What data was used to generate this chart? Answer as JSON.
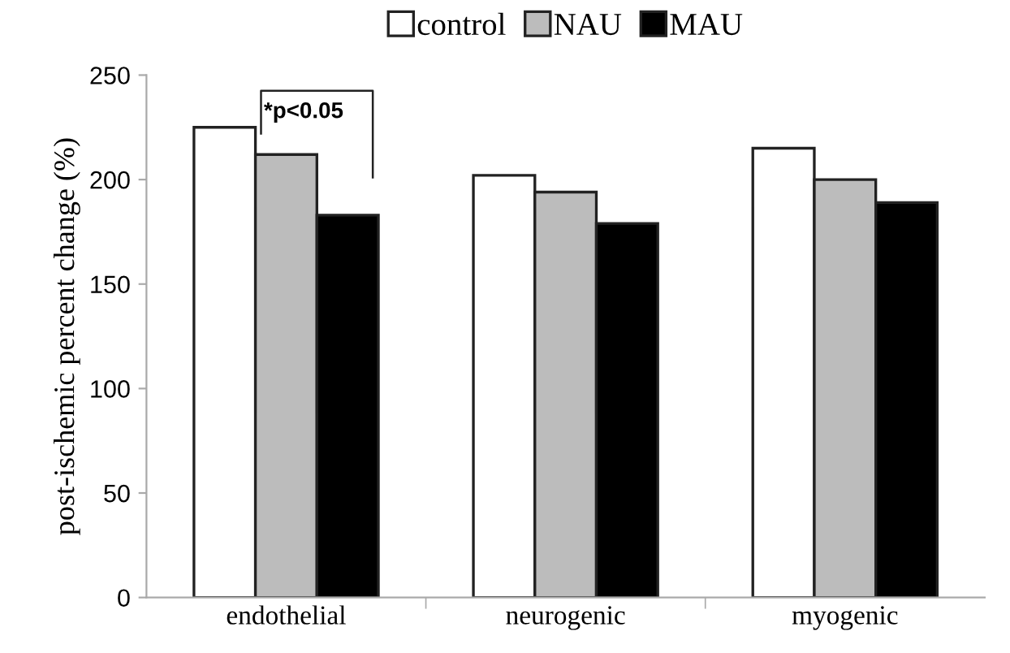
{
  "chart_data": {
    "type": "bar",
    "ylabel": "post-ischemic percent change (%)",
    "categories": [
      "endothelial",
      "neurogenic",
      "myogenic"
    ],
    "series": [
      {
        "name": "control",
        "color": "#ffffff",
        "values": [
          225,
          202,
          215
        ]
      },
      {
        "name": "NAU",
        "color": "#bcbcbc",
        "values": [
          212,
          194,
          200
        ]
      },
      {
        "name": "MAU",
        "color": "#000000",
        "values": [
          183,
          179,
          189
        ]
      }
    ],
    "ylim": [
      0,
      250
    ],
    "yticks": [
      0,
      50,
      100,
      150,
      200,
      250
    ],
    "grid": false,
    "legend": "top",
    "annotations": [
      "*p<0.05"
    ]
  }
}
